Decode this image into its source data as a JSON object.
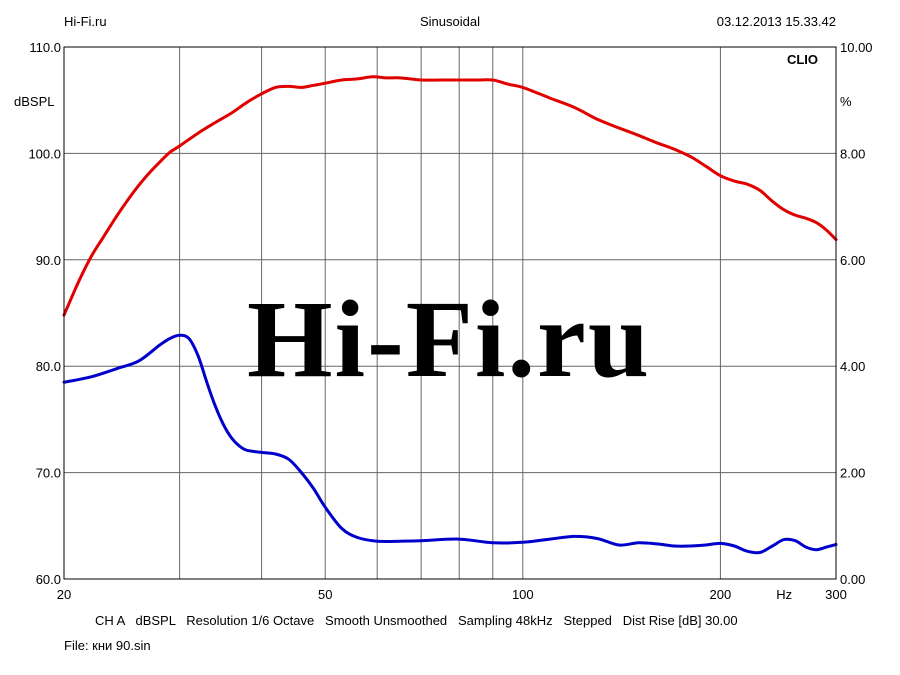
{
  "header": {
    "left": "Hi-Fi.ru",
    "center": "Sinusoidal",
    "right": "03.12.2013 15.33.42"
  },
  "footer": {
    "settings": "CH A   dBSPL   Resolution 1/6 Octave   Smooth Unsmoothed   Sampling 48kHz   Stepped   Dist Rise [dB] 30.00",
    "file": "File: кни 90.sin"
  },
  "brand_label": "CLIO",
  "watermark": "Hi-Fi.ru",
  "chart_data": {
    "type": "line",
    "x_scale": "log",
    "xlim": [
      20,
      300
    ],
    "x_unit": "Hz",
    "x_tick_labels": [
      "20",
      "50",
      "100",
      "200",
      "300"
    ],
    "ylabel_left": "dBSPL",
    "ylim_left": [
      60,
      110
    ],
    "y_tick_labels_left": [
      "60.0",
      "70.0",
      "80.0",
      "90.0",
      "100.0",
      "110.0"
    ],
    "ylabel_right": "%",
    "ylim_right": [
      0,
      10
    ],
    "y_tick_labels_right": [
      "0.00",
      "2.00",
      "4.00",
      "6.00",
      "8.00",
      "10.00"
    ],
    "grid": true,
    "series": [
      {
        "color": "#e00000",
        "axis": "left",
        "x": [
          20,
          21,
          22,
          23,
          24,
          25,
          26,
          27,
          28,
          29,
          30,
          32,
          34,
          36,
          38,
          40,
          42,
          44,
          46,
          48,
          50,
          53,
          56,
          59,
          62,
          65,
          70,
          75,
          80,
          85,
          90,
          95,
          100,
          110,
          120,
          130,
          140,
          150,
          160,
          170,
          180,
          190,
          200,
          210,
          220,
          230,
          240,
          250,
          260,
          270,
          280,
          290,
          300
        ],
        "y": [
          84.8,
          87.8,
          90.3,
          92.2,
          94.0,
          95.6,
          97.0,
          98.2,
          99.2,
          100.1,
          100.7,
          101.9,
          102.9,
          103.8,
          104.8,
          105.6,
          106.2,
          106.3,
          106.2,
          106.4,
          106.6,
          106.9,
          107.0,
          107.2,
          107.1,
          107.1,
          106.9,
          106.9,
          106.9,
          106.9,
          106.9,
          106.5,
          106.2,
          105.2,
          104.3,
          103.2,
          102.4,
          101.7,
          101.0,
          100.4,
          99.7,
          98.8,
          97.9,
          97.4,
          97.1,
          96.5,
          95.5,
          94.7,
          94.2,
          93.9,
          93.5,
          92.8,
          91.9
        ]
      },
      {
        "color": "#0000cc",
        "axis": "right",
        "x": [
          20,
          22,
          24,
          26,
          28,
          29,
          30,
          31,
          32,
          33,
          34,
          35,
          36,
          37,
          38,
          40,
          42,
          44,
          46,
          48,
          50,
          53,
          56,
          60,
          65,
          70,
          80,
          90,
          100,
          110,
          120,
          130,
          140,
          150,
          160,
          170,
          180,
          190,
          200,
          210,
          220,
          230,
          240,
          250,
          260,
          270,
          280,
          290,
          300
        ],
        "y": [
          3.7,
          3.8,
          3.95,
          4.1,
          4.4,
          4.52,
          4.58,
          4.52,
          4.2,
          3.7,
          3.25,
          2.9,
          2.65,
          2.5,
          2.42,
          2.38,
          2.35,
          2.25,
          2.0,
          1.7,
          1.35,
          0.95,
          0.78,
          0.71,
          0.71,
          0.72,
          0.75,
          0.68,
          0.69,
          0.75,
          0.8,
          0.76,
          0.64,
          0.68,
          0.66,
          0.62,
          0.62,
          0.64,
          0.67,
          0.62,
          0.52,
          0.5,
          0.62,
          0.74,
          0.72,
          0.6,
          0.55,
          0.6,
          0.65
        ]
      }
    ]
  }
}
